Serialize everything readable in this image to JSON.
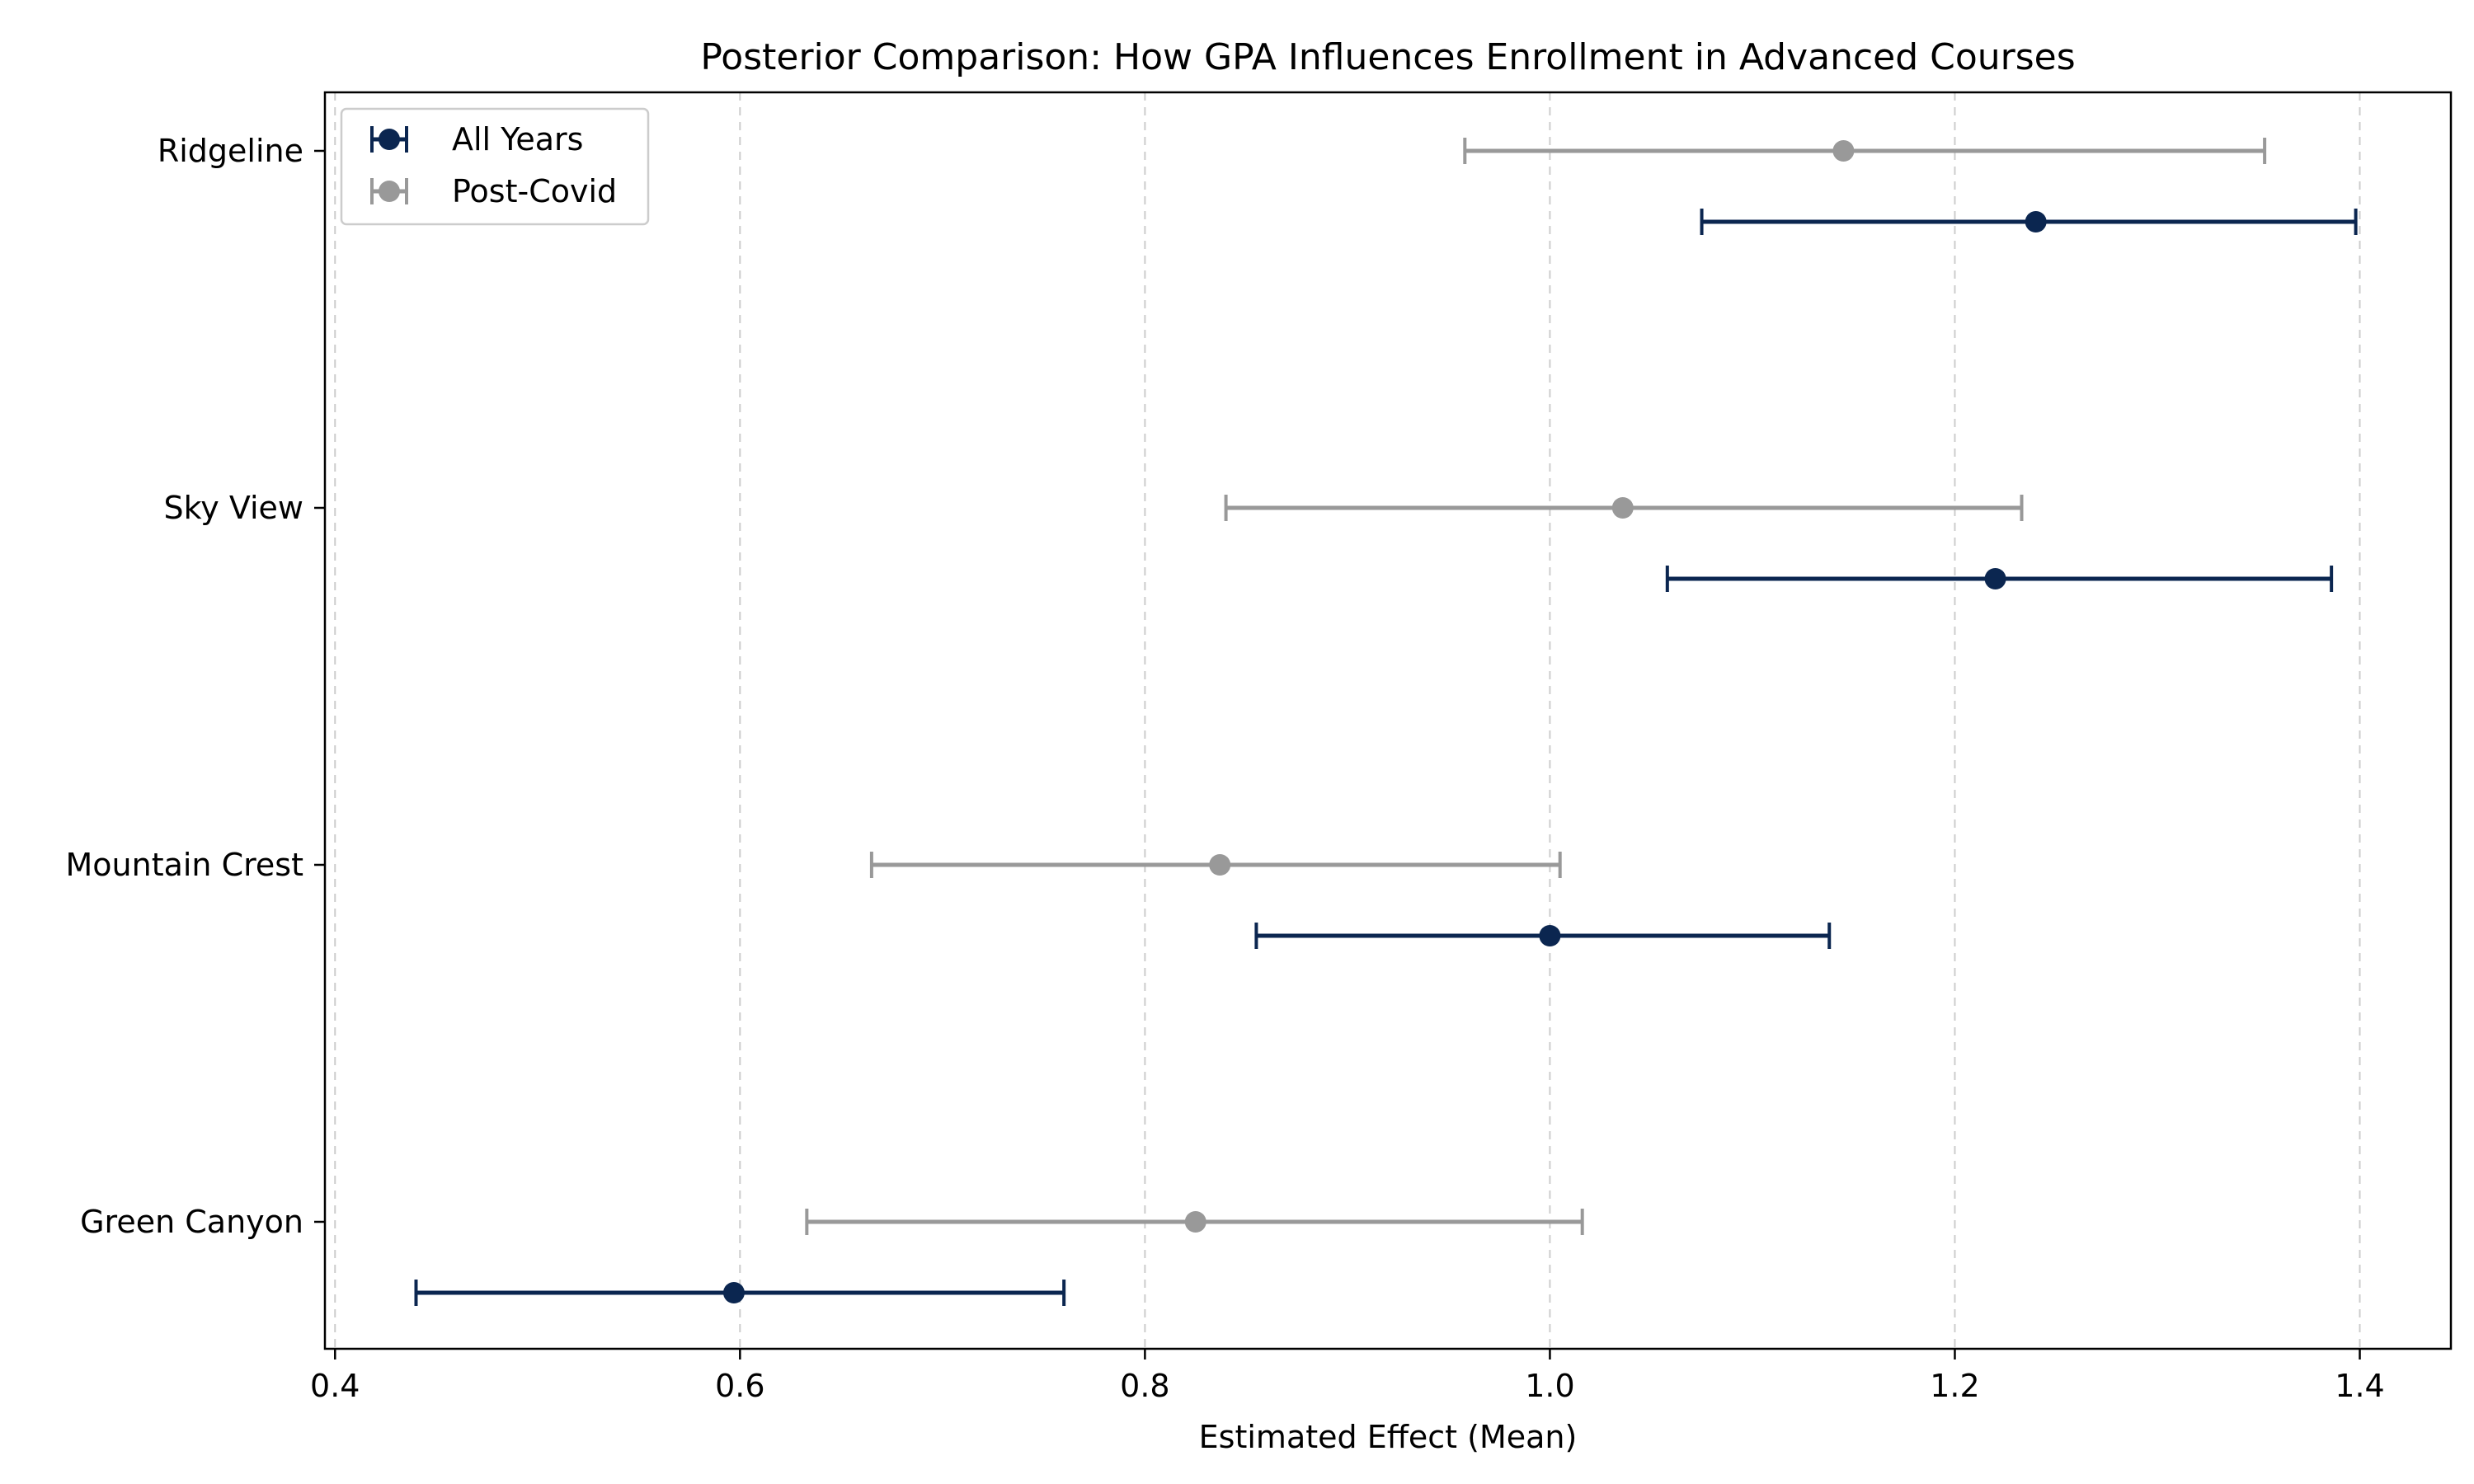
{
  "chart_data": {
    "type": "errorbar",
    "title": "Posterior Comparison: How GPA Influences Enrollment in Advanced Courses",
    "xlabel": "Estimated Effect (Mean)",
    "ylabel": "",
    "xlim": [
      0.395,
      1.445
    ],
    "xticks": [
      0.4,
      0.6,
      0.8,
      1.0,
      1.2,
      1.4
    ],
    "xtick_labels": [
      "0.4",
      "0.6",
      "0.8",
      "1.0",
      "1.2",
      "1.4"
    ],
    "categories": [
      "Ridgeline",
      "Sky View",
      "Mountain Crest",
      "Green Canyon"
    ],
    "grid": {
      "x": true,
      "y": false,
      "style": "dashed"
    },
    "legend": {
      "placement": "top-left"
    },
    "series": [
      {
        "name": "All Years",
        "color": "#0b2650",
        "values": [
          1.24,
          1.22,
          1.0,
          0.597
        ],
        "lower": [
          1.075,
          1.058,
          0.855,
          0.44
        ],
        "upper": [
          1.398,
          1.386,
          1.138,
          0.76
        ]
      },
      {
        "name": "Post-Covid",
        "color": "#999999",
        "values": [
          1.145,
          1.036,
          0.837,
          0.825
        ],
        "lower": [
          0.958,
          0.84,
          0.665,
          0.633
        ],
        "upper": [
          1.353,
          1.233,
          1.005,
          1.016
        ]
      }
    ]
  }
}
